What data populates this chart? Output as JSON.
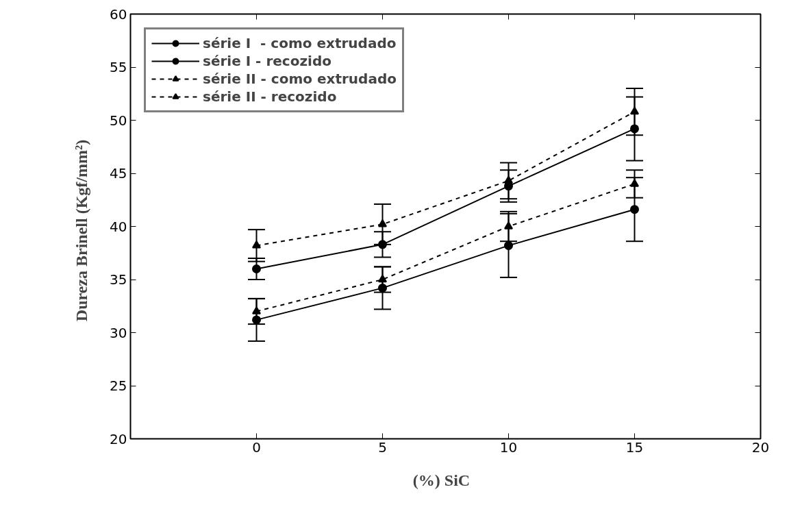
{
  "chart_data": {
    "type": "line",
    "xlabel": "(%)   SiC",
    "ylabel": "Dureza  Brinell  (Kgf/mm²)",
    "x": [
      0,
      5,
      10,
      15
    ],
    "series": [
      {
        "name": "série I  - como extrudado",
        "color": "#000000",
        "marker": "circle",
        "line_style": "solid",
        "values": [
          36,
          38.3,
          43.8,
          49.2
        ],
        "errors": [
          1,
          1.2,
          1.5,
          3
        ]
      },
      {
        "name": "série I - recozido",
        "color": "#000000",
        "marker": "circle",
        "line_style": "solid",
        "values": [
          31.2,
          34.2,
          38.2,
          41.6
        ],
        "errors": [
          2,
          2,
          3,
          3
        ]
      },
      {
        "name": "série II - como extrudado",
        "color": "#000000",
        "marker": "triangle",
        "line_style": "dashed",
        "values": [
          38.2,
          40.2,
          44.3,
          50.8
        ],
        "errors": [
          1.5,
          1.9,
          1.7,
          2.2
        ]
      },
      {
        "name": "série II - recozido",
        "color": "#000000",
        "marker": "triangle",
        "line_style": "dashed",
        "values": [
          32,
          35,
          40,
          44
        ],
        "errors": [
          1.2,
          1.2,
          1.4,
          1.3
        ]
      }
    ],
    "xlim": [
      -5,
      20
    ],
    "xticks": [
      0,
      5,
      10,
      15,
      20
    ],
    "ylim": [
      20,
      60
    ],
    "yticks": [
      20,
      25,
      30,
      35,
      40,
      45,
      50,
      55,
      60
    ],
    "grid": false,
    "legend": "top left"
  }
}
